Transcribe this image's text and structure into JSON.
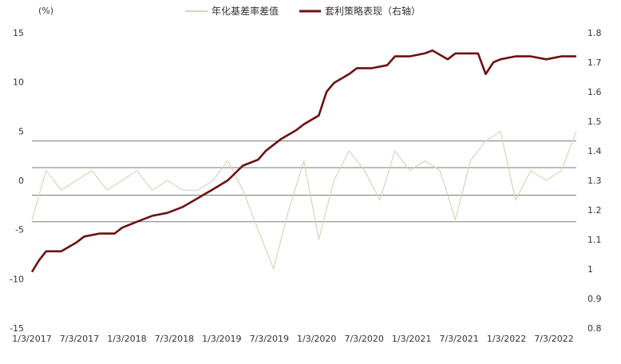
{
  "chart_data": {
    "type": "line",
    "left_unit_label": "(%)",
    "x_tick_labels": [
      "1/3/2017",
      "7/3/2017",
      "1/3/2018",
      "7/3/2018",
      "1/3/2019",
      "7/3/2019",
      "1/3/2020",
      "7/3/2020",
      "1/3/2021",
      "7/3/2021",
      "1/3/2022",
      "7/3/2022"
    ],
    "left_axis": {
      "min": -15,
      "max": 15,
      "ticks": [
        15,
        10,
        5,
        0,
        -5,
        -10,
        -15
      ]
    },
    "right_axis": {
      "min": 0.8,
      "max": 1.8,
      "ticks": [
        1.8,
        1.7,
        1.6,
        1.5,
        1.4,
        1.3,
        1.2,
        1.1,
        1.0,
        0.9,
        0.8
      ],
      "tick_labels": [
        "1.8",
        "1.7",
        "1.6",
        "1.5",
        "1.4",
        "1.3",
        "1.2",
        "1.1",
        "1",
        "0.9",
        "0.8"
      ]
    },
    "reference_lines_left_axis": [
      4.0,
      1.3,
      -1.5,
      -4.2
    ],
    "legend_position": "top-center",
    "grid": false,
    "series": [
      {
        "name": "年化基差率差值",
        "axis": "left",
        "color": "#d9d3bd",
        "x": [
          "2017-01-03",
          "2017-03-01",
          "2017-05-01",
          "2017-07-01",
          "2017-09-01",
          "2017-11-01",
          "2018-01-01",
          "2018-03-01",
          "2018-05-01",
          "2018-07-01",
          "2018-09-01",
          "2018-11-01",
          "2019-01-01",
          "2019-03-01",
          "2019-05-01",
          "2019-07-01",
          "2019-09-01",
          "2019-11-01",
          "2020-01-01",
          "2020-03-01",
          "2020-05-01",
          "2020-07-01",
          "2020-09-01",
          "2020-11-01",
          "2021-01-01",
          "2021-03-01",
          "2021-05-01",
          "2021-07-01",
          "2021-09-01",
          "2021-11-01",
          "2022-01-01",
          "2022-03-01",
          "2022-05-01",
          "2022-07-01",
          "2022-09-01",
          "2022-11-01",
          "2022-12-31"
        ],
        "values": [
          -4,
          1,
          -1,
          0,
          1,
          -1,
          0,
          1,
          -1,
          0,
          -1,
          -1,
          0,
          2,
          -1,
          -5,
          -9,
          -3,
          2,
          -6,
          0,
          3,
          1,
          -2,
          3,
          1,
          2,
          1,
          -4,
          2,
          4,
          5,
          -2,
          1,
          0,
          1,
          5
        ]
      },
      {
        "name": "套利策略表现（右轴）",
        "axis": "right",
        "color": "#6e0f0f",
        "x": [
          "2017-01-03",
          "2017-02-01",
          "2017-03-01",
          "2017-05-01",
          "2017-07-01",
          "2017-08-01",
          "2017-10-01",
          "2017-12-01",
          "2018-01-01",
          "2018-03-01",
          "2018-05-01",
          "2018-07-01",
          "2018-09-01",
          "2018-11-01",
          "2019-01-01",
          "2019-03-01",
          "2019-05-01",
          "2019-07-01",
          "2019-08-01",
          "2019-10-01",
          "2019-12-01",
          "2020-01-01",
          "2020-03-01",
          "2020-04-01",
          "2020-05-01",
          "2020-07-01",
          "2020-08-01",
          "2020-09-01",
          "2020-10-01",
          "2020-12-01",
          "2021-01-01",
          "2021-03-01",
          "2021-05-01",
          "2021-06-01",
          "2021-08-01",
          "2021-09-01",
          "2021-10-01",
          "2021-12-01",
          "2022-01-01",
          "2022-02-01",
          "2022-03-01",
          "2022-05-01",
          "2022-07-01",
          "2022-09-01",
          "2022-11-01",
          "2022-12-31"
        ],
        "values": [
          0.99,
          1.03,
          1.06,
          1.06,
          1.09,
          1.11,
          1.12,
          1.12,
          1.14,
          1.16,
          1.18,
          1.19,
          1.21,
          1.24,
          1.27,
          1.3,
          1.35,
          1.37,
          1.4,
          1.44,
          1.47,
          1.49,
          1.52,
          1.6,
          1.63,
          1.66,
          1.68,
          1.68,
          1.68,
          1.69,
          1.72,
          1.72,
          1.73,
          1.74,
          1.71,
          1.73,
          1.73,
          1.73,
          1.66,
          1.7,
          1.71,
          1.72,
          1.72,
          1.71,
          1.72,
          1.72
        ]
      }
    ]
  }
}
